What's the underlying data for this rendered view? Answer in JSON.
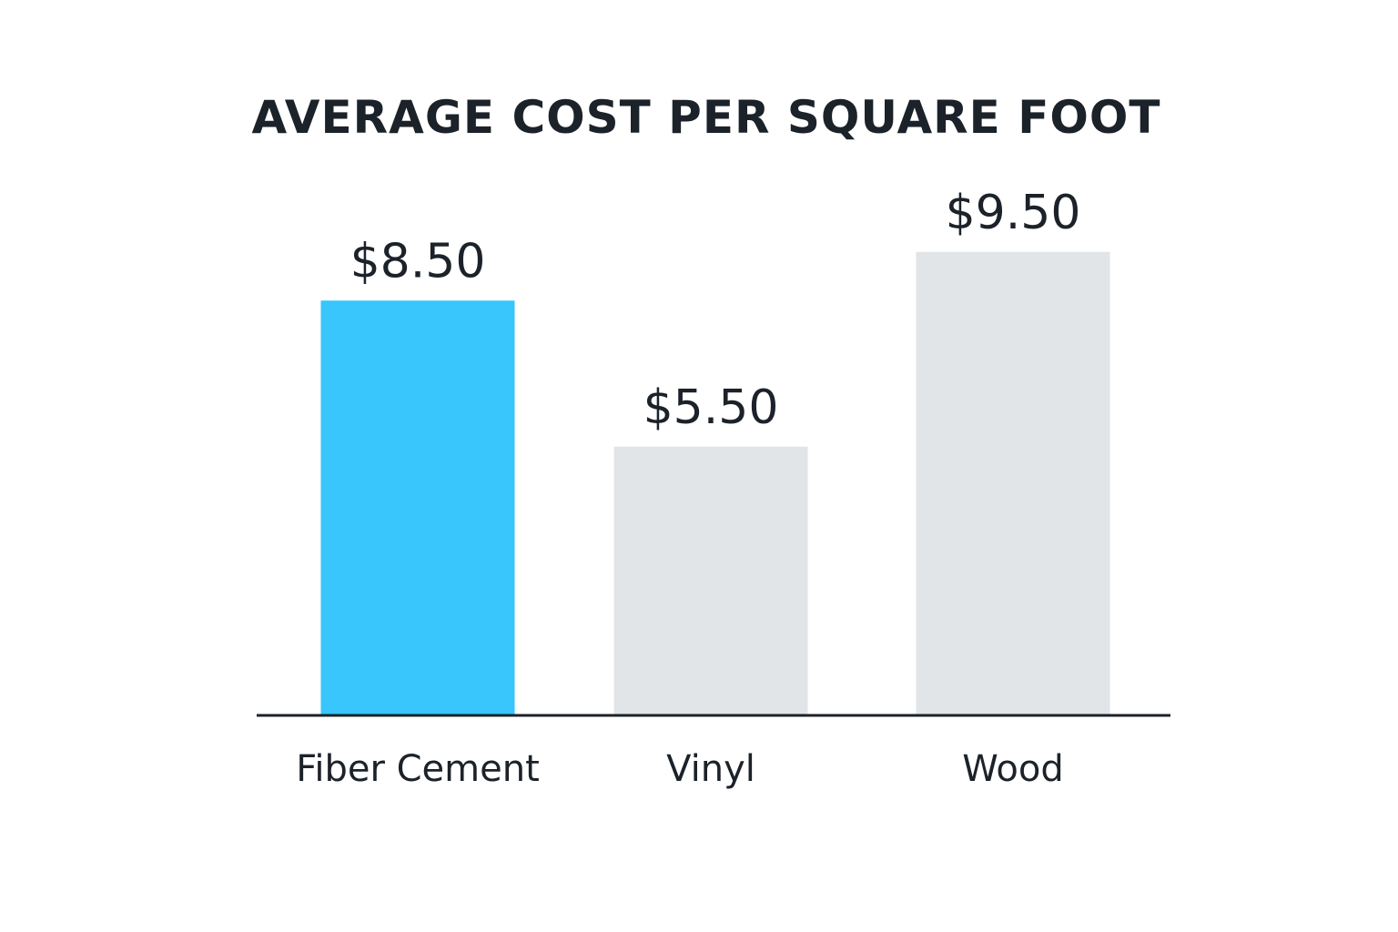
{
  "chart_data": {
    "type": "bar",
    "title": "AVERAGE COST PER SQUARE FOOT",
    "categories": [
      "Fiber Cement",
      "Vinyl",
      "Wood"
    ],
    "values": [
      8.5,
      5.5,
      9.5
    ],
    "value_labels": [
      "$8.50",
      "$5.50",
      "$9.50"
    ],
    "bar_colors": [
      "#38c6fc",
      "#e1e5e8",
      "#e1e5e8"
    ],
    "xlabel": "",
    "ylabel": "",
    "grid": false,
    "legend": "none"
  },
  "colors": {
    "text": "#1c2229",
    "axis": "#1c2229",
    "background": "#ffffff"
  }
}
